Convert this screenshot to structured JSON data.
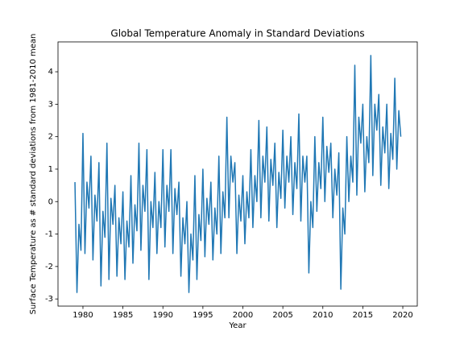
{
  "chart_data": {
    "type": "line",
    "title": "Global Temperature Anomaly in Standard Deviations",
    "xlabel": "Year",
    "ylabel": "Surface Temperature as # standard deviations from 1981-2010 mean",
    "xlim": [
      1976.88,
      2021.81
    ],
    "ylim": [
      -3.22,
      4.92
    ],
    "xticks": [
      1980,
      1985,
      1990,
      1995,
      2000,
      2005,
      2010,
      2015,
      2020
    ],
    "yticks": [
      -3,
      -2,
      -1,
      0,
      1,
      2,
      3,
      4
    ],
    "grid": false,
    "x": [
      1979,
      1979.25,
      1979.5,
      1979.75,
      1980,
      1980.25,
      1980.5,
      1980.75,
      1981,
      1981.25,
      1981.5,
      1981.75,
      1982,
      1982.25,
      1982.5,
      1982.75,
      1983,
      1983.25,
      1983.5,
      1983.75,
      1984,
      1984.25,
      1984.5,
      1984.75,
      1985,
      1985.25,
      1985.5,
      1985.75,
      1986,
      1986.25,
      1986.5,
      1986.75,
      1987,
      1987.25,
      1987.5,
      1987.75,
      1988,
      1988.25,
      1988.5,
      1988.75,
      1989,
      1989.25,
      1989.5,
      1989.75,
      1990,
      1990.25,
      1990.5,
      1990.75,
      1991,
      1991.25,
      1991.5,
      1991.75,
      1992,
      1992.25,
      1992.5,
      1992.75,
      1993,
      1993.25,
      1993.5,
      1993.75,
      1994,
      1994.25,
      1994.5,
      1994.75,
      1995,
      1995.25,
      1995.5,
      1995.75,
      1996,
      1996.25,
      1996.5,
      1996.75,
      1997,
      1997.25,
      1997.5,
      1997.75,
      1998,
      1998.25,
      1998.5,
      1998.75,
      1999,
      1999.25,
      1999.5,
      1999.75,
      2000,
      2000.25,
      2000.5,
      2000.75,
      2001,
      2001.25,
      2001.5,
      2001.75,
      2002,
      2002.25,
      2002.5,
      2002.75,
      2003,
      2003.25,
      2003.5,
      2003.75,
      2004,
      2004.25,
      2004.5,
      2004.75,
      2005,
      2005.25,
      2005.5,
      2005.75,
      2006,
      2006.25,
      2006.5,
      2006.75,
      2007,
      2007.25,
      2007.5,
      2007.75,
      2008,
      2008.25,
      2008.5,
      2008.75,
      2009,
      2009.25,
      2009.5,
      2009.75,
      2010,
      2010.25,
      2010.5,
      2010.75,
      2011,
      2011.25,
      2011.5,
      2011.75,
      2012,
      2012.25,
      2012.5,
      2012.75,
      2013,
      2013.25,
      2013.5,
      2013.75,
      2014,
      2014.25,
      2014.5,
      2014.75,
      2015,
      2015.25,
      2015.5,
      2015.75,
      2016,
      2016.25,
      2016.5,
      2016.75,
      2017,
      2017.25,
      2017.5,
      2017.75,
      2018,
      2018.25,
      2018.5,
      2018.75,
      2019,
      2019.25,
      2019.5,
      2019.75
    ],
    "series": [
      {
        "color": "#1f77b4",
        "values": [
          0.6,
          -2.8,
          -0.7,
          -1.5,
          2.1,
          -1.6,
          0.6,
          -0.2,
          1.4,
          -1.8,
          0.2,
          -0.6,
          1.2,
          -2.6,
          -0.3,
          -1.1,
          1.8,
          -2.4,
          0.1,
          -0.7,
          0.5,
          -2.3,
          -0.5,
          -1.3,
          0.3,
          -2.4,
          -0.6,
          -1.4,
          0.8,
          -1.9,
          -0.1,
          -0.9,
          1.8,
          -1.5,
          0.5,
          -0.3,
          1.6,
          -2.4,
          0.0,
          -0.8,
          0.9,
          -1.6,
          0.0,
          -0.8,
          1.6,
          -1.4,
          0.5,
          -0.3,
          1.6,
          -1.6,
          0.4,
          -0.4,
          0.6,
          -2.3,
          -0.5,
          -1.3,
          0.0,
          -2.8,
          -1.0,
          -1.8,
          0.8,
          -2.4,
          -0.4,
          -1.2,
          1.0,
          -1.7,
          0.1,
          -0.7,
          0.6,
          -1.8,
          -0.2,
          -1.0,
          1.4,
          -1.6,
          0.3,
          -0.5,
          2.6,
          -0.5,
          1.4,
          0.6,
          1.2,
          -1.6,
          0.2,
          -0.6,
          0.8,
          -1.3,
          0.3,
          -0.5,
          1.6,
          -0.8,
          0.8,
          0.0,
          2.5,
          -0.5,
          1.4,
          0.6,
          2.3,
          -0.6,
          1.3,
          0.5,
          1.8,
          -0.8,
          0.9,
          0.1,
          2.2,
          -0.2,
          1.4,
          0.6,
          2.0,
          -0.4,
          1.2,
          0.4,
          2.7,
          -0.6,
          1.4,
          0.6,
          1.4,
          -2.2,
          0.0,
          -0.8,
          2.0,
          -0.3,
          1.2,
          0.4,
          2.6,
          0.0,
          1.7,
          0.9,
          1.8,
          -0.5,
          1.0,
          0.2,
          1.5,
          -2.7,
          -0.2,
          -1.0,
          2.0,
          0.0,
          1.4,
          0.6,
          4.2,
          0.2,
          2.6,
          1.8,
          3.0,
          0.3,
          2.0,
          1.2,
          4.5,
          0.8,
          3.0,
          2.2,
          3.3,
          0.5,
          2.3,
          1.5,
          3.0,
          0.4,
          2.1,
          1.3,
          3.8,
          1.0,
          2.8,
          2.0
        ]
      }
    ]
  }
}
